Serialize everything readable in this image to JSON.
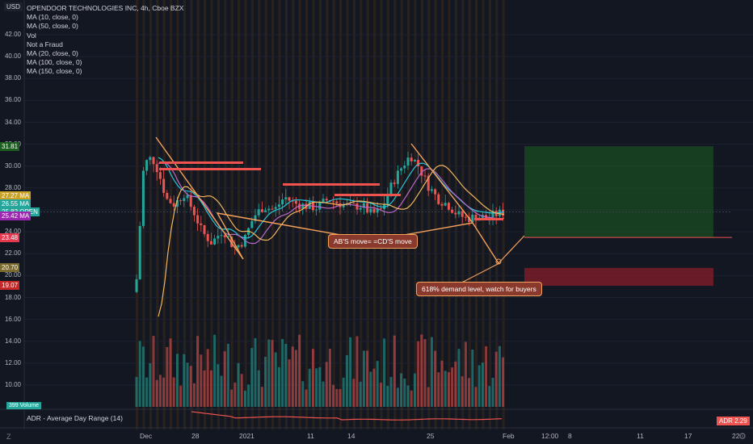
{
  "currency": "USD",
  "legend": [
    "OPENDOOR TECHNOLOGIES INC, 4h, Cboe BZX",
    "MA (10, close, 0)",
    "MA (50, close, 0)",
    "Vol",
    "Not a Fraud",
    "MA (20, close, 0)",
    "MA (100, close, 0)",
    "MA (150, close, 0)"
  ],
  "y_axis_ticks": [
    "42.00",
    "40.00",
    "38.00",
    "36.00",
    "34.00",
    "32.00",
    "30.00",
    "28.00",
    "26.00",
    "24.00",
    "22.00",
    "20.00",
    "18.00",
    "16.00",
    "14.00",
    "12.00",
    "10.00"
  ],
  "price_badges": [
    {
      "text": "31.81",
      "color": "#1b5e20",
      "value": 31.81
    },
    {
      "text": "27.27  MA",
      "color": "#c9a227",
      "value": 27.27
    },
    {
      "text": "26.55  MA",
      "color": "#26a69a",
      "value": 26.55
    },
    {
      "text": "25.82  OPEN",
      "color": "#26a69a",
      "value": 25.82
    },
    {
      "text": "25.42  MA",
      "color": "#9c27b0",
      "value": 25.42
    },
    {
      "text": "23.48",
      "color": "#e53950",
      "value": 23.48
    },
    {
      "text": "20.70",
      "color": "#7a6a2e",
      "value": 20.7
    },
    {
      "text": "19.07",
      "color": "#c62828",
      "value": 19.07
    }
  ],
  "x_axis_ticks": [
    "Dec",
    "28",
    "2021",
    "11",
    "14",
    "25",
    "Feb",
    "12:00",
    "8",
    "11",
    "17",
    "22"
  ],
  "annotations": {
    "abcd": "AB'S move=   =CD'S move",
    "demand": "618% demand level, watch for buyers"
  },
  "adr": {
    "label": "ADR - Average Day Range (14)",
    "badge": "ADR  2.29"
  },
  "volume_badge": "399  Volume",
  "icons": {
    "logo": "tradingview-z-icon",
    "settings": "gear-icon"
  },
  "colors": {
    "up": "#26a69a",
    "down": "#ef5350",
    "ma_orange": "#f5a25c",
    "ma_teal": "#26c6da",
    "ma_purple": "#ba68c8",
    "target_zone": "#1b5e20",
    "stop_zone": "#7f1d2a"
  },
  "trade_setup": {
    "target": 31.81,
    "entry": 23.48,
    "stop_high": 20.7,
    "stop_low": 19.07
  }
}
